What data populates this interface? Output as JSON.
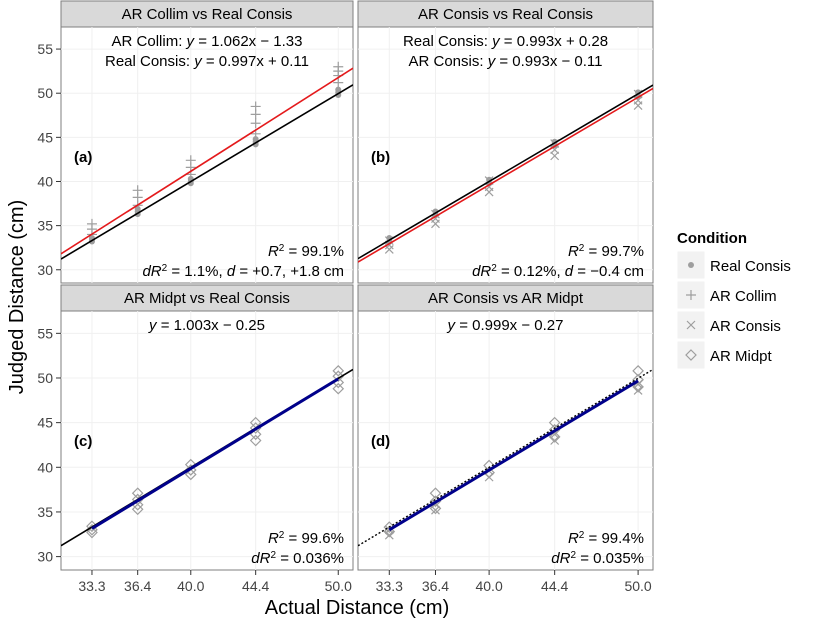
{
  "chart_data": {
    "type": "scatter",
    "xlabel": "Actual Distance (cm)",
    "ylabel": "Judged Distance (cm)",
    "xlim": [
      31.2,
      51.0
    ],
    "ylim": [
      28.5,
      57.5
    ],
    "x_ticks": [
      "33.3",
      "36.4",
      "40.0",
      "44.4",
      "50.0"
    ],
    "x_tick_values": [
      33.3,
      36.4,
      40.0,
      44.4,
      50.0
    ],
    "y_ticks": [
      "30",
      "35",
      "40",
      "45",
      "50",
      "55"
    ],
    "y_tick_values": [
      30,
      35,
      40,
      45,
      50,
      55
    ],
    "legend": {
      "title": "Condition",
      "position": "right",
      "items": [
        {
          "label": "Real Consis",
          "marker": "dot"
        },
        {
          "label": "AR Collim",
          "marker": "plus"
        },
        {
          "label": "AR Consis",
          "marker": "cross"
        },
        {
          "label": "AR Midpt",
          "marker": "diamond"
        }
      ]
    },
    "colors": {
      "point": "#9e9e9e",
      "real_line": "#000000",
      "ar_line": "#e41a1c",
      "midpt_line": "#00008b"
    },
    "panels": [
      {
        "title": "AR Collim vs Real Consis",
        "tag": "(a)",
        "equations": [
          {
            "prefix": "AR Collim: ",
            "equation": "y = 1.062x − 1.33",
            "color": "#e41a1c"
          },
          {
            "prefix": "Real Consis: ",
            "equation": "y = 0.997x + 0.11",
            "color": "#000000"
          }
        ],
        "stats": [
          "R² = 99.1%",
          "dR² = 1.1%, d = +0.7, +1.8 cm"
        ],
        "lines": [
          {
            "slope": 0.997,
            "intercept": 0.11,
            "color": "#000000",
            "style": "solid"
          },
          {
            "slope": 1.062,
            "intercept": -1.33,
            "color": "#e41a1c",
            "style": "solid"
          }
        ],
        "series": [
          {
            "name": "Real Consis",
            "marker": "dot",
            "x": [
              33.3,
              33.3,
              33.3,
              36.4,
              36.4,
              36.4,
              40.0,
              40.0,
              40.0,
              44.4,
              44.4,
              44.4,
              50.0,
              50.0,
              50.0
            ],
            "y": [
              33.2,
              33.4,
              33.6,
              36.3,
              36.6,
              36.9,
              39.8,
              40.0,
              40.3,
              44.2,
              44.5,
              44.8,
              49.8,
              50.1,
              50.4
            ]
          },
          {
            "name": "AR Collim",
            "marker": "plus",
            "x": [
              33.3,
              33.3,
              33.3,
              36.4,
              36.4,
              36.4,
              40.0,
              40.0,
              40.0,
              44.4,
              44.4,
              44.4,
              44.4,
              50.0,
              50.0,
              50.0,
              50.0
            ],
            "y": [
              34.0,
              34.6,
              35.2,
              37.3,
              38.2,
              39.0,
              40.8,
              41.6,
              42.4,
              45.4,
              46.6,
              47.6,
              48.5,
              51.2,
              52.0,
              52.5,
              53.0
            ]
          }
        ]
      },
      {
        "title": "AR Consis vs Real Consis",
        "tag": "(b)",
        "equations": [
          {
            "prefix": "Real Consis: ",
            "equation": "y = 0.993x + 0.28",
            "color": "#000000"
          },
          {
            "prefix": "AR Consis: ",
            "equation": "y = 0.993x − 0.11",
            "color": "#e41a1c"
          }
        ],
        "stats": [
          "R² = 99.7%",
          "dR² = 0.12%, d = −0.4 cm"
        ],
        "lines": [
          {
            "slope": 0.993,
            "intercept": 0.28,
            "color": "#000000",
            "style": "solid"
          },
          {
            "slope": 0.993,
            "intercept": -0.11,
            "color": "#e41a1c",
            "style": "solid"
          }
        ],
        "series": [
          {
            "name": "Real Consis",
            "marker": "dot",
            "x": [
              33.3,
              33.3,
              36.4,
              36.4,
              40.0,
              40.0,
              44.4,
              44.4,
              50.0,
              50.0
            ],
            "y": [
              33.2,
              33.6,
              36.2,
              36.6,
              39.8,
              40.2,
              44.1,
              44.5,
              49.6,
              50.1
            ]
          },
          {
            "name": "AR Consis",
            "marker": "cross",
            "x": [
              33.3,
              33.3,
              33.3,
              36.4,
              36.4,
              36.4,
              40.0,
              40.0,
              40.0,
              44.4,
              44.4,
              44.4,
              50.0,
              50.0,
              50.0
            ],
            "y": [
              32.3,
              32.8,
              33.3,
              35.2,
              35.8,
              36.3,
              38.8,
              39.4,
              40.1,
              42.9,
              43.6,
              44.3,
              48.6,
              49.2,
              49.9
            ]
          }
        ]
      },
      {
        "title": "AR Midpt vs Real Consis",
        "tag": "(c)",
        "equations": [
          {
            "prefix": "",
            "equation": "y = 1.003x − 0.25",
            "color": "#000000"
          }
        ],
        "stats": [
          "R² = 99.6%",
          "dR² = 0.036%"
        ],
        "lines": [
          {
            "slope": 0.997,
            "intercept": 0.11,
            "color": "#000000",
            "style": "solid"
          },
          {
            "slope": 1.003,
            "intercept": -0.25,
            "color": "#00008b",
            "style": "thick"
          }
        ],
        "series": [
          {
            "name": "AR Midpt",
            "marker": "diamond",
            "x": [
              33.3,
              33.3,
              33.3,
              36.4,
              36.4,
              36.4,
              36.4,
              40.0,
              40.0,
              40.0,
              44.4,
              44.4,
              44.4,
              44.4,
              50.0,
              50.0,
              50.0,
              50.0
            ],
            "y": [
              32.7,
              33.0,
              33.4,
              35.3,
              35.8,
              36.4,
              37.1,
              39.2,
              39.7,
              40.3,
              43.0,
              43.7,
              44.4,
              45.0,
              48.8,
              49.5,
              50.2,
              50.8
            ]
          }
        ]
      },
      {
        "title": "AR Consis vs AR Midpt",
        "tag": "(d)",
        "equations": [
          {
            "prefix": "",
            "equation": "y = 0.999x − 0.27",
            "color": "#000000"
          }
        ],
        "stats": [
          "R² = 99.4%",
          "dR² = 0.035%"
        ],
        "lines": [
          {
            "slope": 0.997,
            "intercept": 0.11,
            "color": "#000000",
            "style": "dotted"
          },
          {
            "slope": 0.999,
            "intercept": -0.27,
            "color": "#00008b",
            "style": "thick"
          }
        ],
        "series": [
          {
            "name": "AR Consis",
            "marker": "cross",
            "x": [
              33.3,
              33.3,
              36.4,
              36.4,
              40.0,
              40.0,
              44.4,
              44.4,
              50.0,
              50.0
            ],
            "y": [
              32.4,
              33.0,
              35.2,
              35.9,
              38.9,
              39.6,
              43.0,
              43.7,
              48.6,
              49.3
            ]
          },
          {
            "name": "AR Midpt",
            "marker": "diamond",
            "x": [
              33.3,
              33.3,
              36.4,
              36.4,
              36.4,
              40.0,
              40.0,
              44.4,
              44.4,
              44.4,
              50.0,
              50.0,
              50.0
            ],
            "y": [
              32.8,
              33.3,
              35.4,
              36.2,
              37.1,
              39.4,
              40.2,
              43.4,
              44.2,
              45.0,
              49.0,
              49.8,
              50.8
            ]
          }
        ]
      }
    ]
  }
}
